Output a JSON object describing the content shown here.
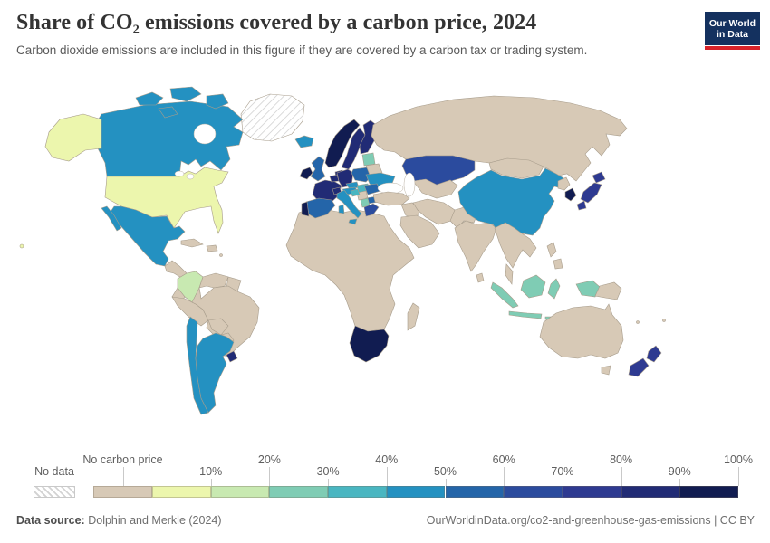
{
  "header": {
    "title": "Share of CO₂ emissions covered by a carbon price, 2024",
    "subtitle": "Carbon dioxide emissions are included in this figure if they are covered by a carbon tax or trading system.",
    "logo_line1": "Our World",
    "logo_line2": "in Data"
  },
  "footer": {
    "source_label": "Data source:",
    "source_value": "Dolphin and Merkle (2024)",
    "url": "OurWorldinData.org/co2-and-greenhouse-gas-emissions | CC BY"
  },
  "legend": {
    "no_data_label": "No data",
    "bins": [
      {
        "band": "none",
        "tick": "No carbon price",
        "row": "top"
      },
      {
        "band": "b10",
        "tick": "10%",
        "row": "bottom"
      },
      {
        "band": "b20",
        "tick": "20%",
        "row": "top"
      },
      {
        "band": "b30",
        "tick": "30%",
        "row": "bottom"
      },
      {
        "band": "b40",
        "tick": "40%",
        "row": "top"
      },
      {
        "band": "b50",
        "tick": "50%",
        "row": "bottom"
      },
      {
        "band": "b60",
        "tick": "60%",
        "row": "top"
      },
      {
        "band": "b70",
        "tick": "70%",
        "row": "bottom"
      },
      {
        "band": "b80",
        "tick": "80%",
        "row": "top"
      },
      {
        "band": "b90",
        "tick": "90%",
        "row": "bottom"
      },
      {
        "band": "b100",
        "tick": "100%",
        "row": "top"
      }
    ]
  },
  "chart_data": {
    "type": "choropleth",
    "title": "Share of CO₂ emissions covered by a carbon price, 2024",
    "unit": "% of CO₂ emissions covered",
    "legend_position": "bottom",
    "bands": {
      "no_data": {
        "label": "No data",
        "color": "hatch"
      },
      "none": {
        "label": "No carbon price",
        "color": "#d7c9b6"
      },
      "b10": {
        "label": "0-10%",
        "color": "#ecf6ad"
      },
      "b20": {
        "label": "10-20%",
        "color": "#c8e9b1"
      },
      "b30": {
        "label": "20-30%",
        "color": "#7fccb4"
      },
      "b40": {
        "label": "30-40%",
        "color": "#49b6c1"
      },
      "b50": {
        "label": "40-50%",
        "color": "#2491c1"
      },
      "b60": {
        "label": "50-60%",
        "color": "#2465a9"
      },
      "b70": {
        "label": "60-70%",
        "color": "#2b4b9e"
      },
      "b80": {
        "label": "70-80%",
        "color": "#2e3a91"
      },
      "b90": {
        "label": "80-90%",
        "color": "#212b75"
      },
      "b100": {
        "label": "90-100%",
        "color": "#111c51"
      }
    },
    "values": {
      "greenland": "no_data",
      "united-states": "b10",
      "canada": "b50",
      "mexico": "b50",
      "iceland": "b50",
      "caribbean": "none",
      "central-america": "none",
      "colombia": "b20",
      "venezuela": "none",
      "guyanas": "none",
      "ecuador": "none",
      "peru": "none",
      "brazil": "none",
      "bolivia": "none",
      "paraguay": "none",
      "chile": "b50",
      "argentina": "b50",
      "uruguay": "b90",
      "africa": "none",
      "south-africa": "b100",
      "madagascar": "none",
      "norway": "b100",
      "sweden": "b90",
      "finland": "b90",
      "denmark": "b90",
      "united-kingdom": "b60",
      "ireland": "b100",
      "france": "b90",
      "benelux": "b90",
      "germany": "b90",
      "poland": "b60",
      "czechia": "b50",
      "austria": "b50",
      "hungary-slovakia": "b40",
      "switzerland": "b90",
      "spain": "b60",
      "portugal": "b100",
      "italy": "b50",
      "baltics": "b30",
      "belarus": "none",
      "ukraine": "b50",
      "romania": "b60",
      "serbia": "none",
      "croatia": "b40",
      "bulgaria": "b60",
      "albania": "b30",
      "greece": "b70",
      "russia": "none",
      "mongolia": "none",
      "kazakhstan": "b70",
      "central-asia": "none",
      "turkey": "none",
      "levant-iraq": "none",
      "saudi-arabia": "none",
      "iran": "none",
      "afghanistan-pakistan": "none",
      "india": "none",
      "sri-lanka": "none",
      "china": "b50",
      "north-korea": "none",
      "south-korea": "b100",
      "japan": "b80",
      "southeast-asia": "none",
      "indonesia": "b30",
      "papua-new-guinea": "none",
      "philippines": "none",
      "australia": "none",
      "new-zealand": "b80",
      "pacific-islands": "none"
    }
  }
}
